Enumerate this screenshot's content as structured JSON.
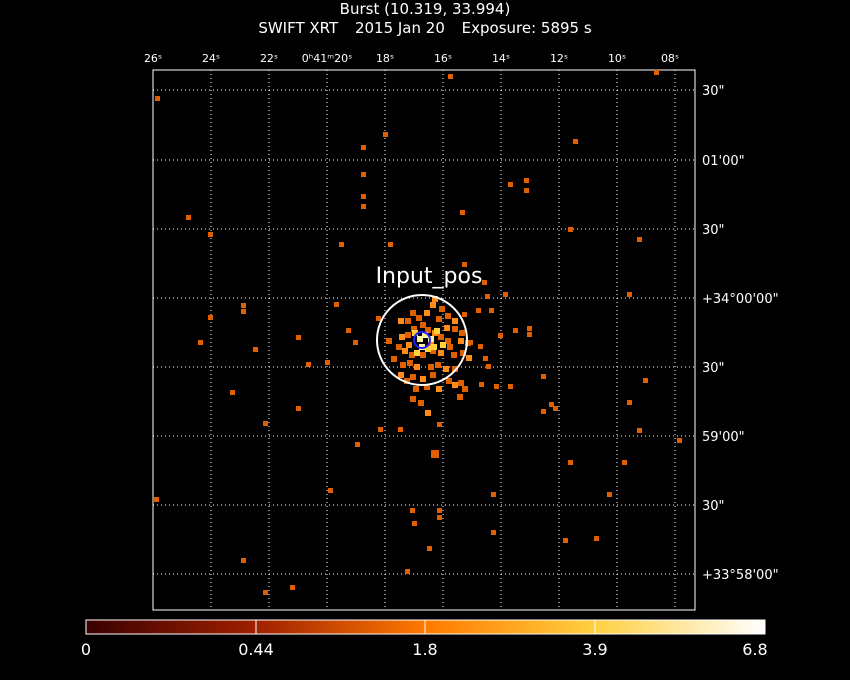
{
  "header": {
    "title": "Burst (10.319, 33.994)",
    "instrument": "SWIFT XRT",
    "date": "2015 Jan 20",
    "exposure": "Exposure: 5895 s"
  },
  "ra_ticks": [
    "26ˢ",
    "24ˢ",
    "22ˢ",
    "0ʰ41ᵐ20ˢ",
    "18ˢ",
    "16ˢ",
    "14ˢ",
    "12ˢ",
    "10ˢ",
    "08ˢ"
  ],
  "dec_ticks": [
    "30\"",
    "01'00\"",
    "30\"",
    "+34°00'00\"",
    "30\"",
    "59'00\"",
    "30\"",
    "+33°58'00\""
  ],
  "source_label": "Input_pos",
  "colorbar": {
    "labels": [
      "0",
      "0.44",
      "1.8",
      "3.9",
      "6.8"
    ]
  },
  "colors": {
    "low": "#e06000",
    "mid": "#ff8c1a",
    "high": "#ffd23a",
    "peak": "#fff3a0",
    "circle": "#ffffff",
    "marker": "#2020ff"
  }
}
